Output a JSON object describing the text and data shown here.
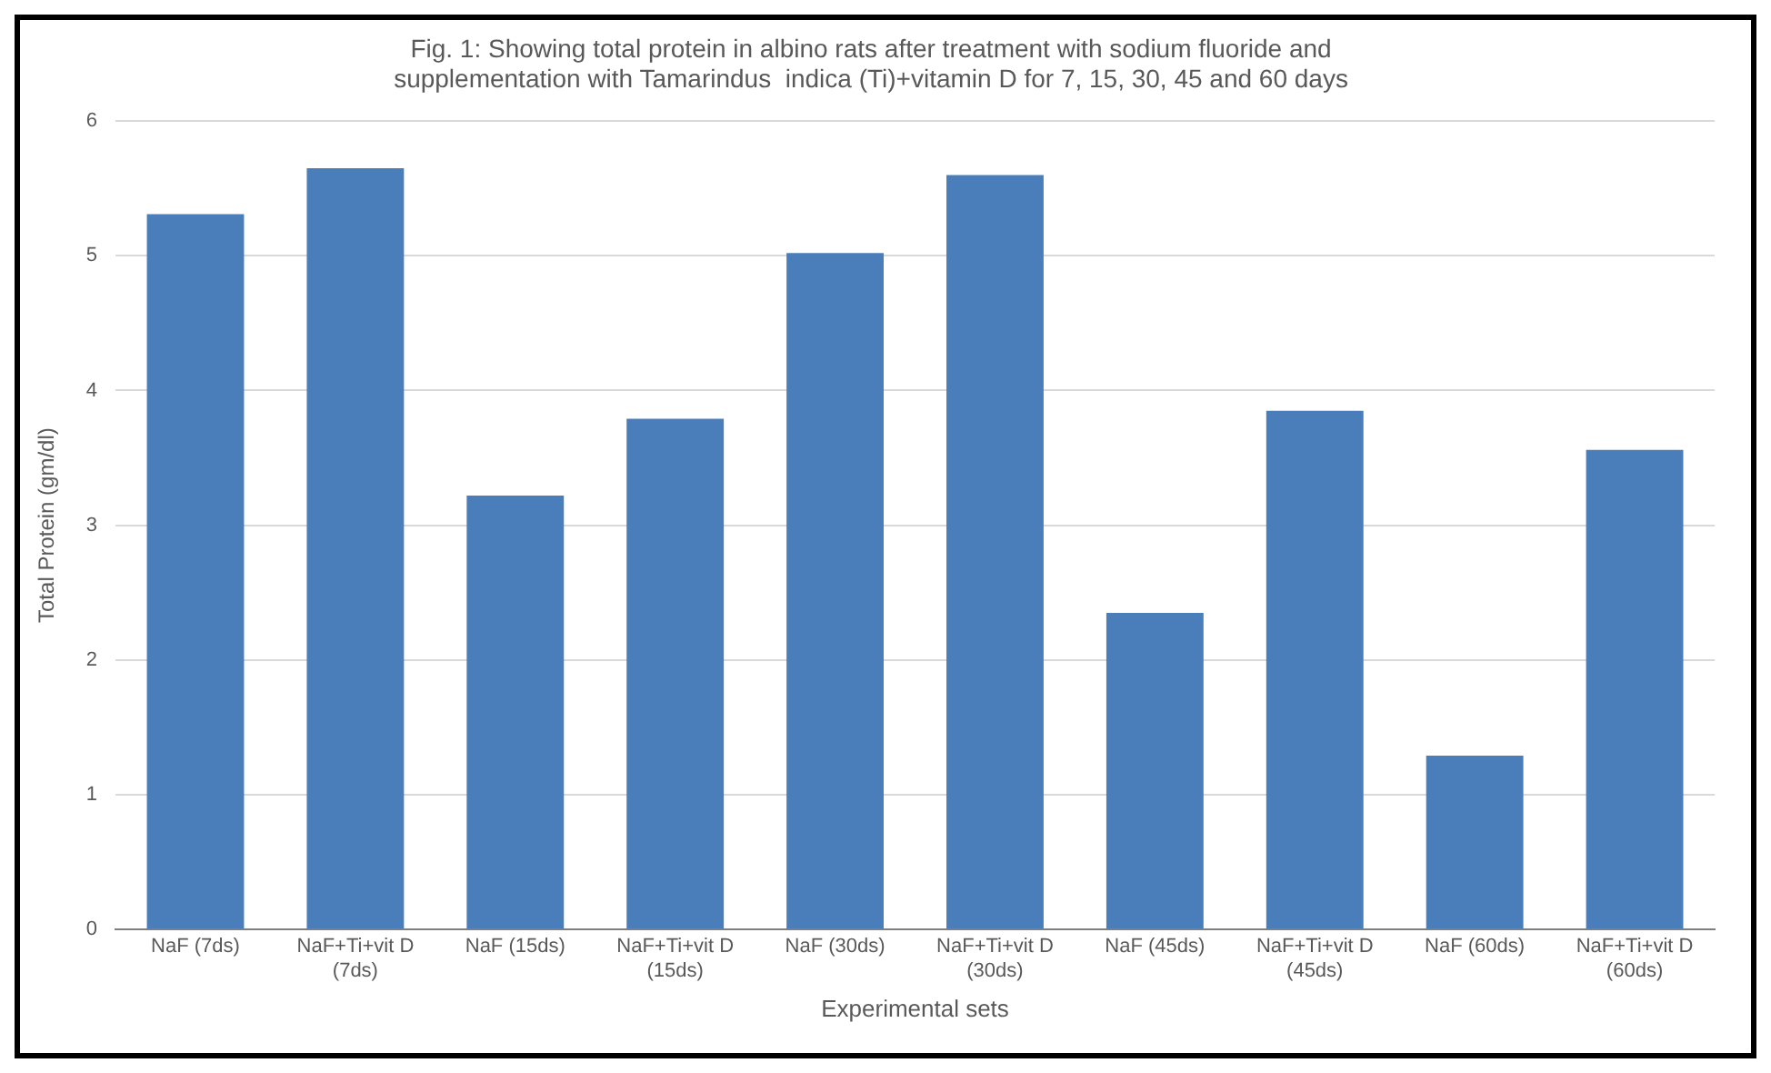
{
  "chart_data": {
    "type": "bar",
    "title": "Fig. 1: Showing total protein in albino rats after treatment with sodium fluoride and supplementation with Tamarindus  indica (Ti)+vitamin D for 7, 15, 30, 45 and 60 days",
    "xlabel": "Experimental sets",
    "ylabel": "Total Protein (gm/dl)",
    "categories": [
      "NaF (7ds)",
      "NaF+Ti+vit D (7ds)",
      "NaF (15ds)",
      "NaF+Ti+vit D (15ds)",
      "NaF (30ds)",
      "NaF+Ti+vit D (30ds)",
      "NaF (45ds)",
      "NaF+Ti+vit D (45ds)",
      "NaF (60ds)",
      "NaF+Ti+vit D (60ds)"
    ],
    "values": [
      5.31,
      5.65,
      3.22,
      3.79,
      5.02,
      5.6,
      2.35,
      3.85,
      1.29,
      3.56
    ],
    "color": "#4a7ebb",
    "ylim": [
      0,
      6
    ],
    "yticks": [
      0,
      1,
      2,
      3,
      4,
      5,
      6
    ],
    "grid": "y"
  }
}
